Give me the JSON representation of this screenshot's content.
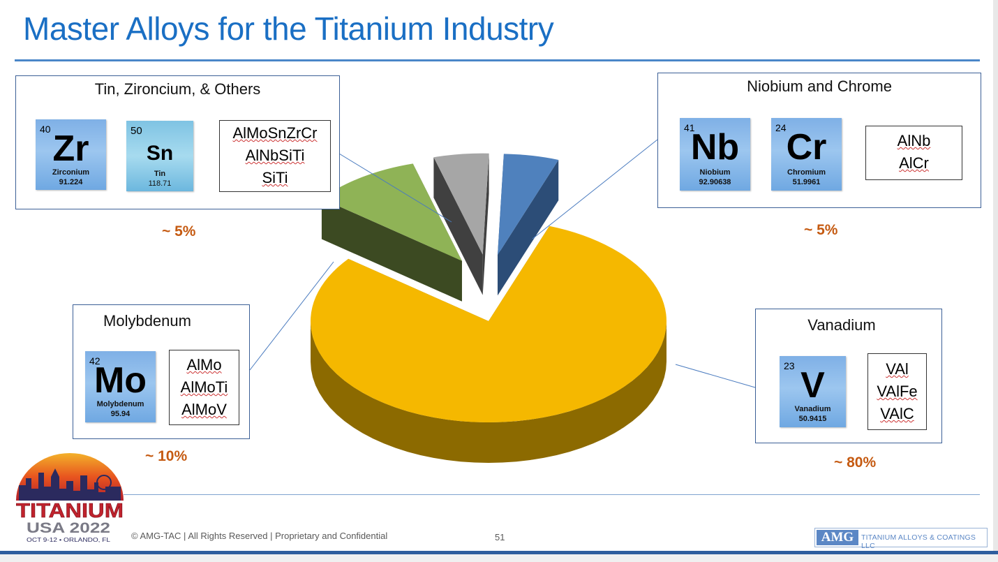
{
  "header": {
    "title": "Master Alloys for the Titanium Industry"
  },
  "panels": {
    "tin": {
      "title": "Tin, Ziron­cium, & Others",
      "elements": [
        {
          "number": "40",
          "symbol": "Zr",
          "name": "Zirconium",
          "weight": "91.224"
        },
        {
          "number": "50",
          "symbol": "Sn",
          "name": "Tin",
          "weight": "118.71"
        }
      ],
      "alloys": [
        "AlMoSnZrCr",
        "AlNbSiTi",
        "SiTi"
      ],
      "percent": "~ 5%"
    },
    "niobium": {
      "title": "Niobium and Chrome",
      "elements": [
        {
          "number": "41",
          "symbol": "Nb",
          "name": "Niobium",
          "weight": "92.90638"
        },
        {
          "number": "24",
          "symbol": "Cr",
          "name": "Chromium",
          "weight": "51.9961"
        }
      ],
      "alloys": [
        "AlNb",
        "AlCr"
      ],
      "percent": "~ 5%"
    },
    "molybdenum": {
      "title": "Molybdenum",
      "elements": [
        {
          "number": "42",
          "symbol": "Mo",
          "name": "Molybdenum",
          "weight": "95.94"
        }
      ],
      "alloys": [
        "AlMo",
        "AlMoTi",
        "AlMoV"
      ],
      "percent": "~ 10%"
    },
    "vanadium": {
      "title": "Vanadium",
      "elements": [
        {
          "number": "23",
          "symbol": "V",
          "name": "Vanadium",
          "weight": "50.9415"
        }
      ],
      "alloys": [
        "VAl",
        "VAlFe",
        "VAlC"
      ],
      "percent": "~ 80%"
    }
  },
  "chart_data": {
    "type": "pie",
    "style": "3d-exploded",
    "title": "",
    "slices": [
      {
        "label": "Vanadium",
        "value": 80,
        "color": "#f5b800",
        "side": "#8c6a00"
      },
      {
        "label": "Molybdenum",
        "value": 10,
        "color": "#8fb356",
        "side": "#3c4a22"
      },
      {
        "label": "Tin, Zironcium, & Others",
        "value": 5,
        "color": "#a6a6a6",
        "side": "#404040"
      },
      {
        "label": "Niobium and Chrome",
        "value": 5,
        "color": "#4f81bd",
        "side": "#2c4d77"
      }
    ]
  },
  "logo": {
    "main": "TITANIUM",
    "sub": "USA 2022",
    "tagline": "OCT 9-12 • ORLANDO, FL"
  },
  "footer": {
    "copyright": "© AMG-TAC | All Rights Reserved | Proprietary and Confidential",
    "page": "51",
    "brand_mark": "AMG",
    "brand_text": "TITANIUM ALLOYS & COATINGS LLC"
  }
}
